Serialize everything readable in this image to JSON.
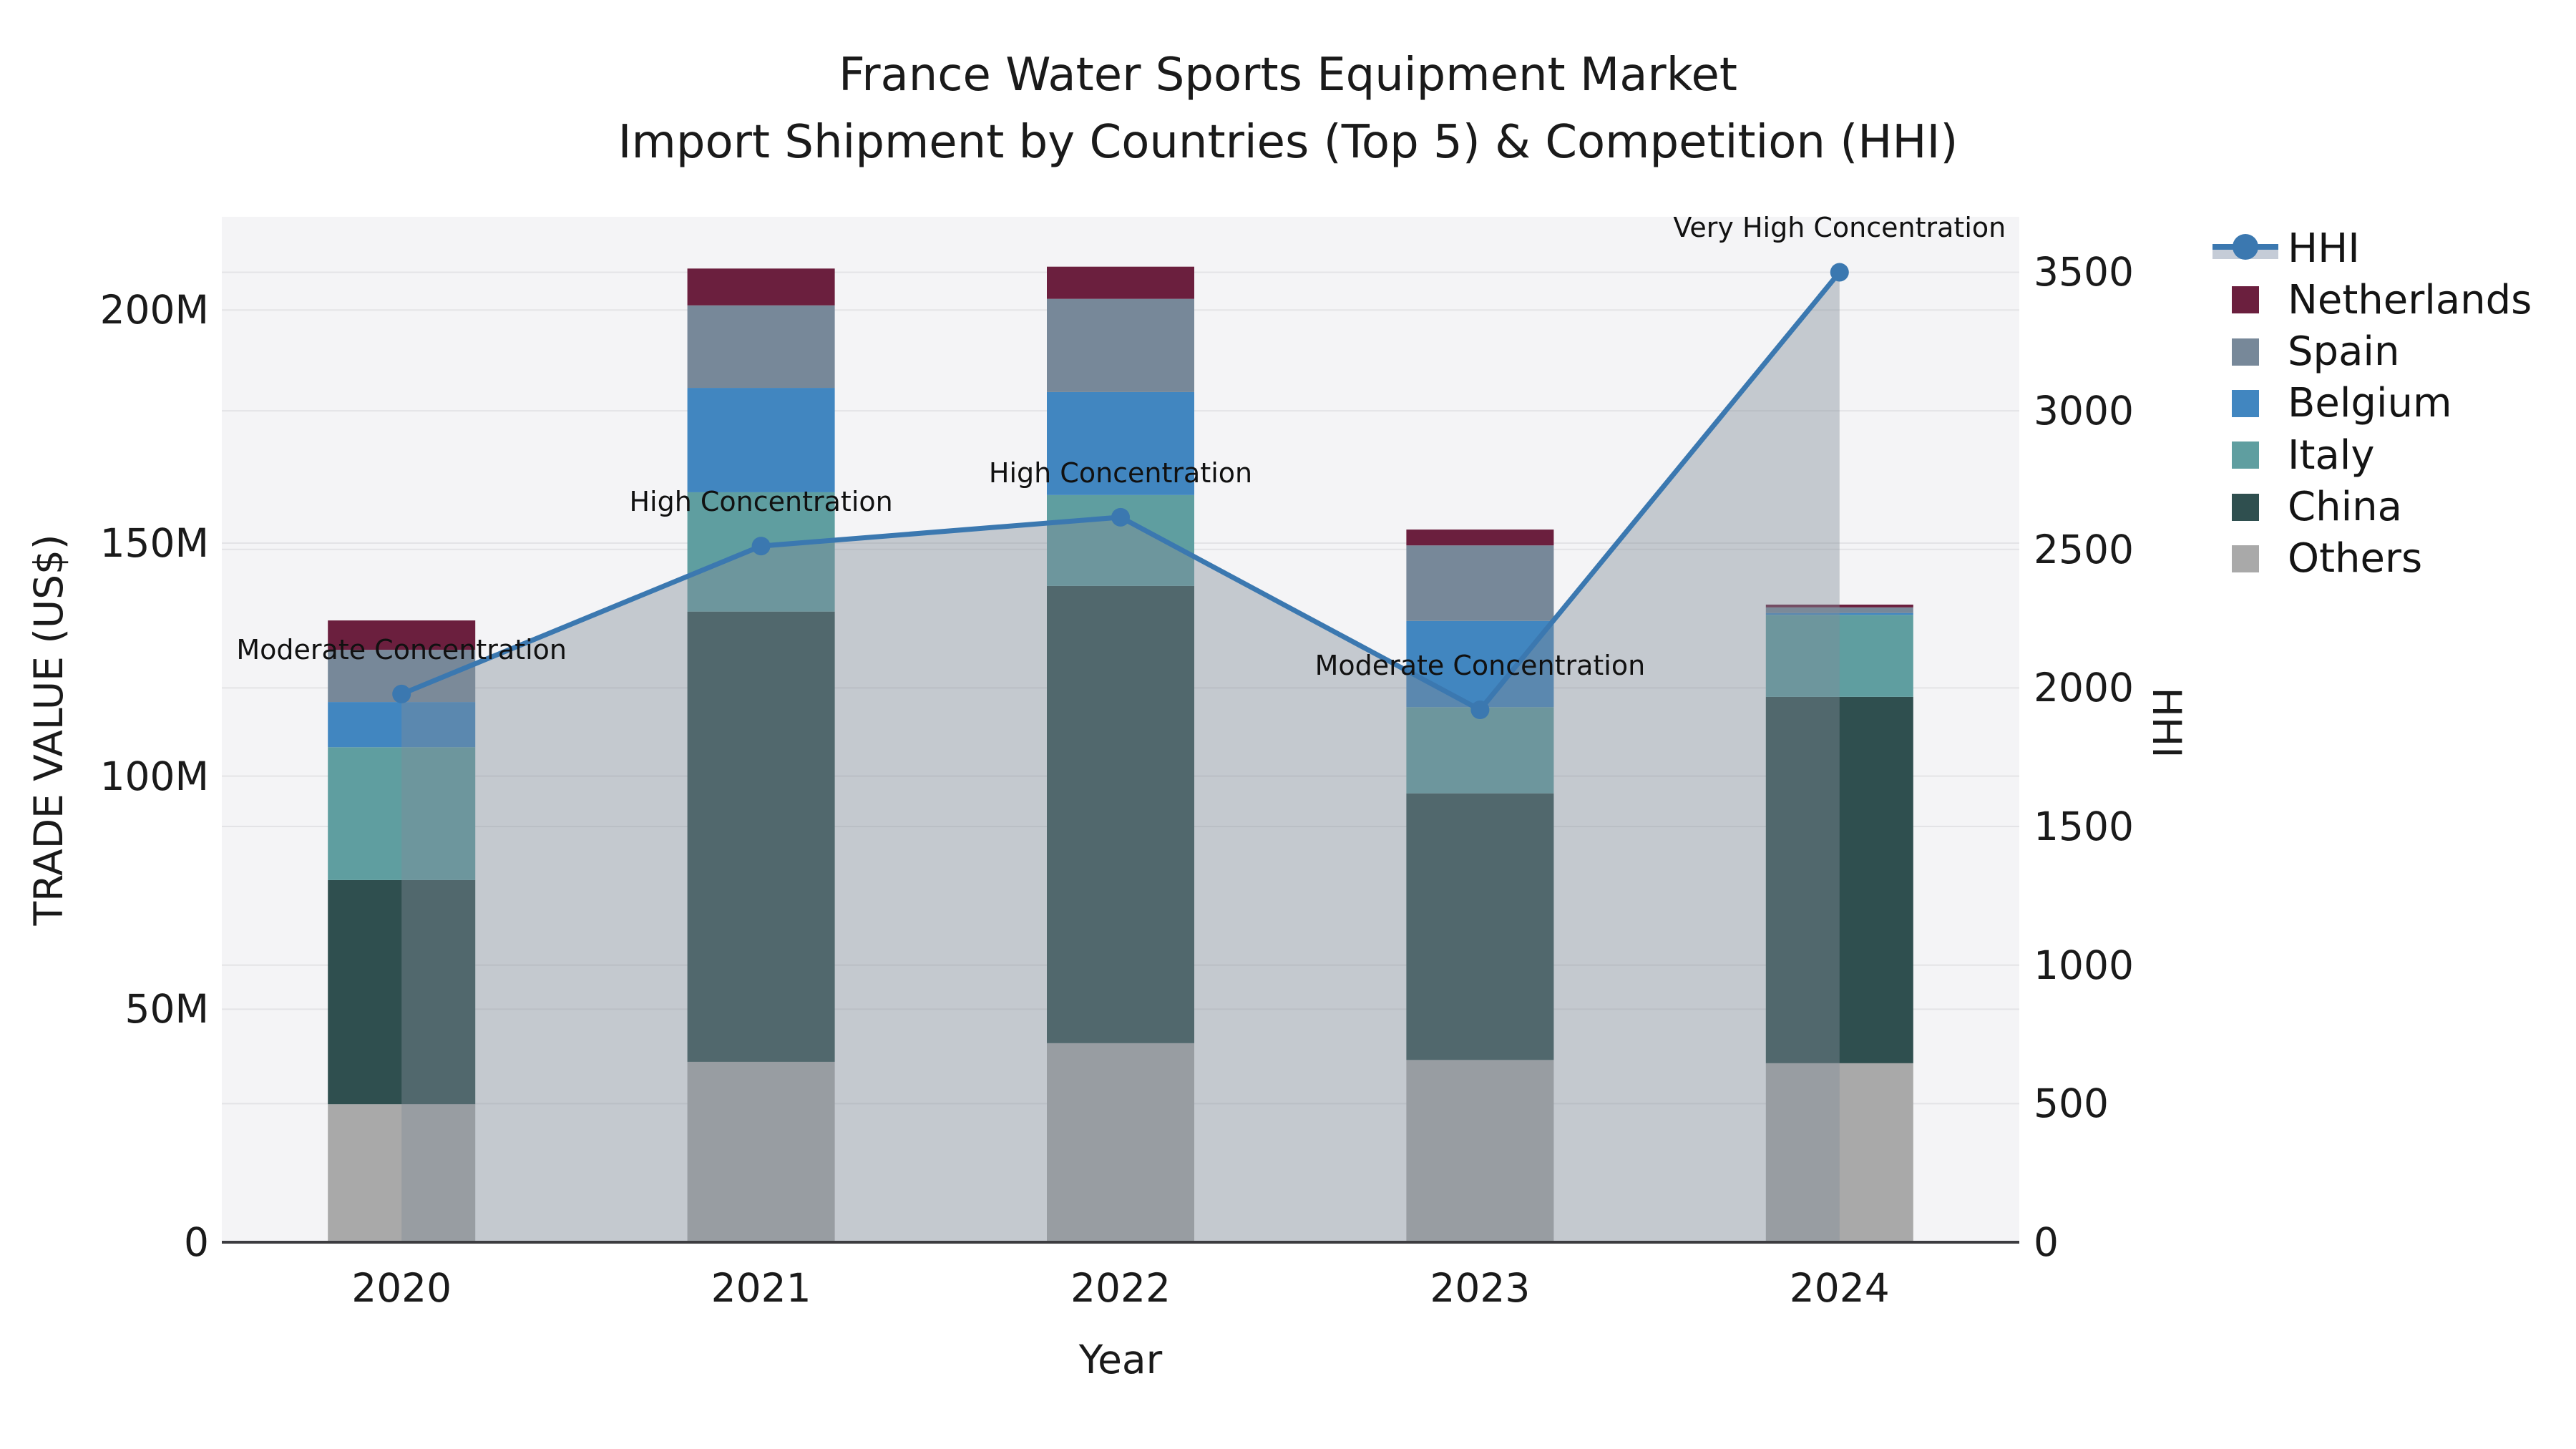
{
  "title": {
    "line1": "France Water Sports Equipment Market",
    "line2": "Import Shipment by Countries (Top 5) & Competition (HHI)"
  },
  "axes": {
    "x": {
      "label": "Year"
    },
    "y_left": {
      "label": "TRADE VALUE (US$)",
      "ticks": [
        "0",
        "50M",
        "100M",
        "150M",
        "200M"
      ],
      "tick_values": [
        0,
        50,
        100,
        150,
        200
      ],
      "max": 220
    },
    "y_right": {
      "label": "HHI",
      "ticks": [
        "0",
        "500",
        "1000",
        "1500",
        "2000",
        "2500",
        "3000",
        "3500"
      ],
      "tick_values": [
        0,
        500,
        1000,
        1500,
        2000,
        2500,
        3000,
        3500
      ],
      "max": 3700
    }
  },
  "chart_data": {
    "type": [
      "bar",
      "line"
    ],
    "categories": [
      "2020",
      "2021",
      "2022",
      "2023",
      "2024"
    ],
    "xlabel": "Year",
    "ylabel_left": "TRADE VALUE (US$)",
    "ylabel_right": "HHI",
    "ylim_left_millions": [
      0,
      220
    ],
    "ylim_right": [
      0,
      3700
    ],
    "grid": true,
    "legend_position": "right",
    "series": [
      {
        "name": "Others",
        "unit": "M US$",
        "values": [
          29.6,
          38.7,
          42.7,
          39.1,
          38.4
        ],
        "color": "#a9a9a9"
      },
      {
        "name": "China",
        "unit": "M US$",
        "values": [
          48.1,
          96.6,
          98.1,
          57.2,
          78.6
        ],
        "color": "#2f4f4f"
      },
      {
        "name": "Italy",
        "unit": "M US$",
        "values": [
          28.5,
          25.6,
          19.5,
          18.5,
          17.6
        ],
        "color": "#5f9ea0"
      },
      {
        "name": "Belgium",
        "unit": "M US$",
        "values": [
          9.7,
          22.4,
          22.1,
          18.5,
          0.4
        ],
        "color": "#4186c0"
      },
      {
        "name": "Spain",
        "unit": "M US$",
        "values": [
          11.2,
          17.7,
          20.0,
          16.2,
          1.2
        ],
        "color": "#778899"
      },
      {
        "name": "Netherlands",
        "unit": "M US$",
        "values": [
          6.3,
          7.9,
          6.9,
          3.4,
          0.6
        ],
        "color": "#6b1f3e"
      }
    ],
    "stack_totals_millions": [
      133.4,
      208.9,
      209.3,
      152.9,
      136.8
    ],
    "hhi_line": {
      "name": "HHI",
      "values": [
        1978,
        2512,
        2616,
        1921,
        3500
      ],
      "line_color": "#3b78b0",
      "area_fill": "rgba(128,140,153,0.42)"
    },
    "annotations": [
      {
        "category": "2020",
        "text": "Moderate Concentration"
      },
      {
        "category": "2021",
        "text": "High Concentration"
      },
      {
        "category": "2022",
        "text": "High Concentration"
      },
      {
        "category": "2023",
        "text": "Moderate Concentration"
      },
      {
        "category": "2024",
        "text": "Very High Concentration"
      }
    ]
  },
  "legend": {
    "items": [
      {
        "label": "HHI",
        "type": "line",
        "color": "#3b78b0"
      },
      {
        "label": "Netherlands",
        "type": "swatch",
        "color": "#6b1f3e"
      },
      {
        "label": "Spain",
        "type": "swatch",
        "color": "#778899"
      },
      {
        "label": "Belgium",
        "type": "swatch",
        "color": "#4186c0"
      },
      {
        "label": "Italy",
        "type": "swatch",
        "color": "#5f9ea0"
      },
      {
        "label": "China",
        "type": "swatch",
        "color": "#2f4f4f"
      },
      {
        "label": "Others",
        "type": "swatch",
        "color": "#a9a9a9"
      }
    ]
  },
  "colors": {
    "plot_background": "#f4f4f6",
    "figure_background": "#ffffff",
    "gridline": "#e3e3e6",
    "axis_line": "#3c3c40",
    "text": "#1a1a1a",
    "hhi_line": "#3b78b0",
    "hhi_area": "rgba(128,140,153,0.42)"
  }
}
